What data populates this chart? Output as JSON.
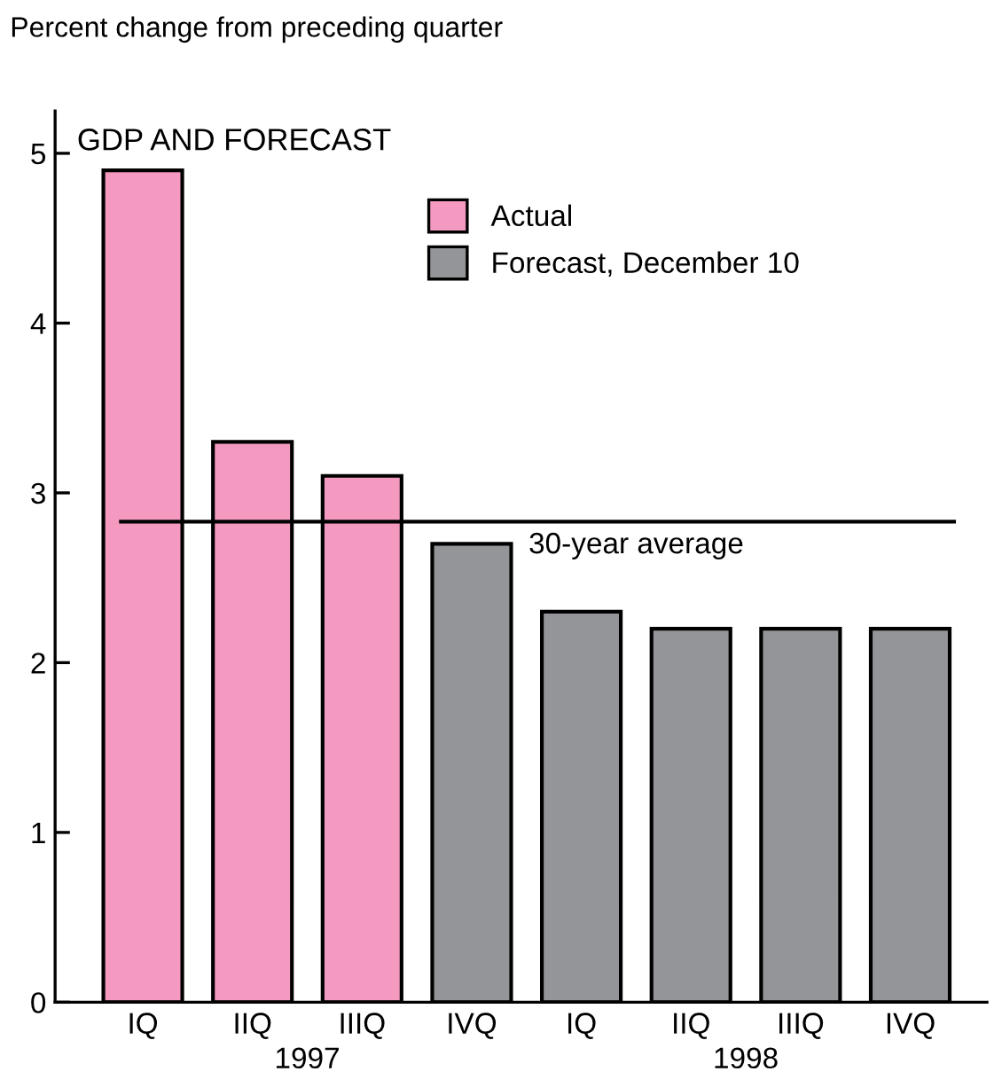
{
  "chart_data": {
    "type": "bar",
    "title": "GDP AND FORECAST",
    "ylabel": "Percent change from preceding quarter",
    "categories": [
      "IQ",
      "IIQ",
      "IIIQ",
      "IVQ",
      "IQ",
      "IIQ",
      "IIIQ",
      "IVQ"
    ],
    "series": [
      {
        "name": "Actual",
        "color": "#f49ac1",
        "values": [
          4.9,
          3.3,
          3.1,
          null,
          null,
          null,
          null,
          null
        ]
      },
      {
        "name": "Forecast, December 10",
        "color": "#939598",
        "values": [
          null,
          null,
          null,
          2.7,
          2.3,
          2.2,
          2.2,
          2.2
        ]
      }
    ],
    "annotations": [
      "1997",
      "1998"
    ],
    "ref_lines": [
      {
        "axis": "y",
        "value": 2.83,
        "label": "30-year average",
        "color": "#000000"
      }
    ],
    "ylim": [
      0,
      5.25
    ],
    "yticks": [
      0,
      1,
      2,
      3,
      4,
      5
    ],
    "grid": false,
    "legend": "top"
  }
}
